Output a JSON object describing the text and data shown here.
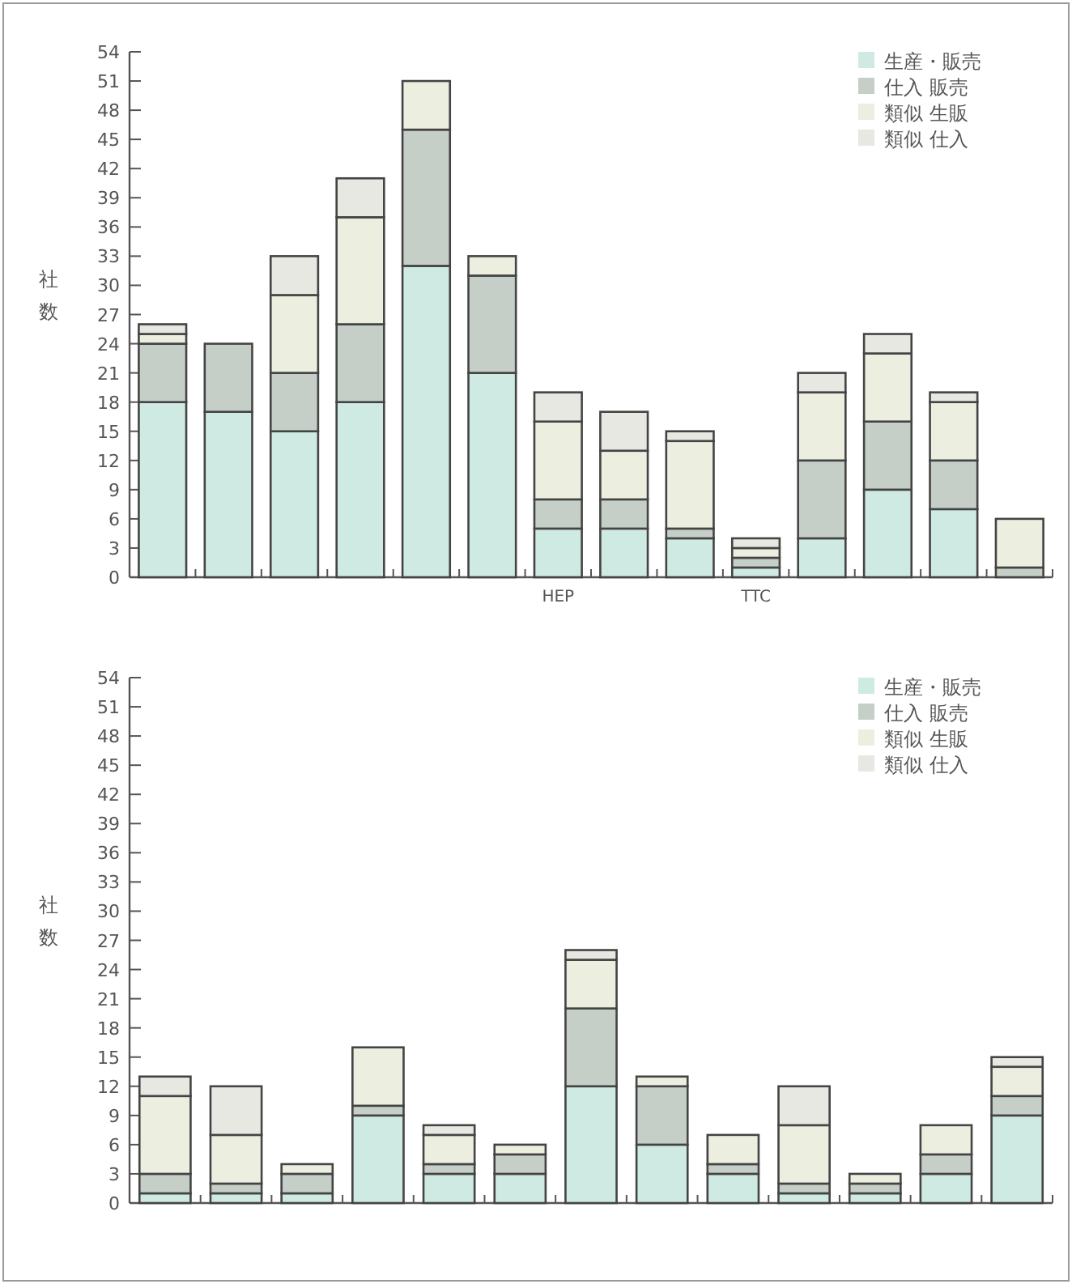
{
  "chart_data": [
    {
      "type": "bar",
      "stacked": true,
      "ylabel": "社数",
      "categories": [
        null,
        null,
        null,
        null,
        null,
        null,
        "HEP",
        null,
        null,
        "TTC",
        null,
        null,
        null,
        null
      ],
      "series": [
        {
          "name": "生産・販売",
          "color": "#cfeae2",
          "values": [
            18,
            17,
            15,
            18,
            32,
            21,
            5,
            5,
            4,
            1,
            4,
            9,
            7,
            0
          ]
        },
        {
          "name": "仕入 販売",
          "color": "#c5cfc7",
          "values": [
            6,
            7,
            6,
            8,
            14,
            10,
            3,
            3,
            1,
            1,
            8,
            7,
            5,
            1
          ]
        },
        {
          "name": "類似 生販",
          "color": "#eceee0",
          "values": [
            1,
            0,
            8,
            11,
            5,
            2,
            8,
            5,
            9,
            1,
            7,
            7,
            6,
            5
          ]
        },
        {
          "name": "類似 仕入",
          "color": "#e6e8e1",
          "values": [
            1,
            0,
            4,
            4,
            0,
            0,
            3,
            4,
            1,
            1,
            2,
            2,
            1,
            0
          ]
        }
      ],
      "ylim": [
        0,
        54
      ],
      "yticks": [
        0,
        3,
        6,
        9,
        12,
        15,
        18,
        21,
        24,
        27,
        30,
        33,
        36,
        39,
        42,
        45,
        48,
        51,
        54
      ],
      "legend": "top right",
      "grid": false
    },
    {
      "type": "bar",
      "stacked": true,
      "ylabel": "社数",
      "categories": [
        null,
        null,
        null,
        null,
        null,
        null,
        null,
        null,
        null,
        null,
        null,
        null,
        null
      ],
      "series": [
        {
          "name": "生産・販売",
          "color": "#cfeae2",
          "values": [
            1,
            1,
            1,
            9,
            3,
            3,
            12,
            6,
            3,
            1,
            1,
            3,
            9
          ]
        },
        {
          "name": "仕入 販売",
          "color": "#c5cfc7",
          "values": [
            2,
            1,
            2,
            1,
            1,
            2,
            8,
            6,
            1,
            1,
            1,
            2,
            2
          ]
        },
        {
          "name": "類似 生販",
          "color": "#eceee0",
          "values": [
            8,
            5,
            1,
            6,
            3,
            1,
            5,
            1,
            3,
            6,
            1,
            3,
            3
          ]
        },
        {
          "name": "類似 仕入",
          "color": "#e6e8e1",
          "values": [
            2,
            5,
            0,
            0,
            1,
            0,
            1,
            0,
            0,
            4,
            0,
            0,
            1
          ]
        }
      ],
      "ylim": [
        0,
        54
      ],
      "yticks": [
        0,
        3,
        6,
        9,
        12,
        15,
        18,
        21,
        24,
        27,
        30,
        33,
        36,
        39,
        42,
        45,
        48,
        51,
        54
      ],
      "legend": "top right",
      "grid": false
    }
  ]
}
